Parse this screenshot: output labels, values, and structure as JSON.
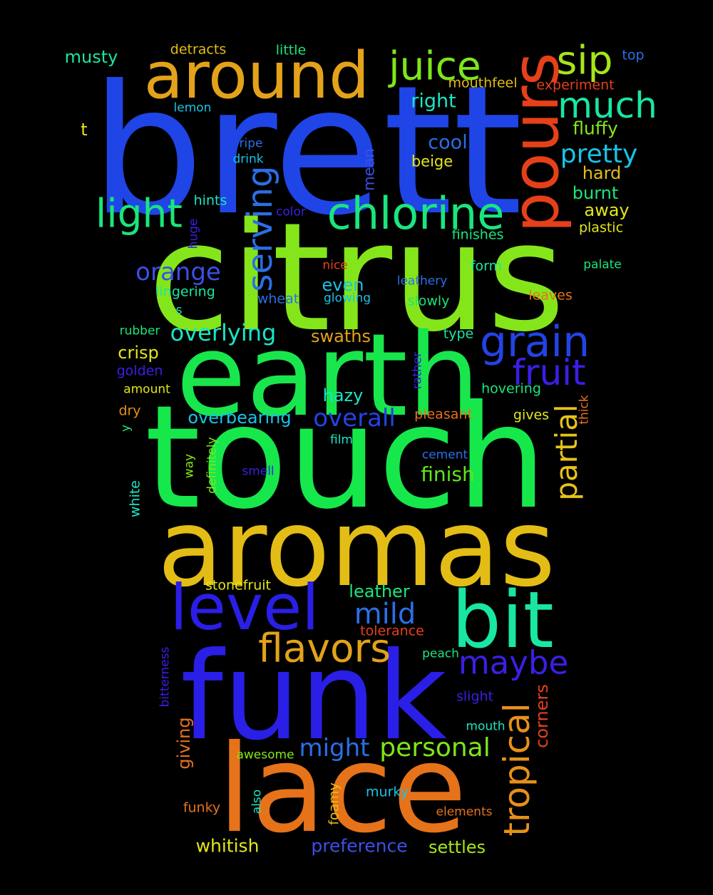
{
  "words": [
    {
      "text": "brett",
      "color": "#1f45e6"
    },
    {
      "text": "citrus",
      "color": "#84e61a"
    },
    {
      "text": "touch",
      "color": "#16e84c"
    },
    {
      "text": "earth",
      "color": "#19e64c"
    },
    {
      "text": "aromas",
      "color": "#e3bd16"
    },
    {
      "text": "funk",
      "color": "#2a1fe6"
    },
    {
      "text": "lace",
      "color": "#e6721a"
    },
    {
      "text": "around",
      "color": "#e3a21a"
    },
    {
      "text": "pours",
      "color": "#e6401a"
    },
    {
      "text": "juice",
      "color": "#7ee61a"
    },
    {
      "text": "sip",
      "color": "#a6e61a"
    },
    {
      "text": "much",
      "color": "#19e6a3"
    },
    {
      "text": "chlorine",
      "color": "#19e67d"
    },
    {
      "text": "light",
      "color": "#19e67a"
    },
    {
      "text": "serving",
      "color": "#2b6fe6"
    },
    {
      "text": "grain",
      "color": "#2343e6"
    },
    {
      "text": "fruit",
      "color": "#3a1fe6"
    },
    {
      "text": "level",
      "color": "#2a1fe6"
    },
    {
      "text": "bit",
      "color": "#19e6a3"
    },
    {
      "text": "flavors",
      "color": "#e3a21a"
    },
    {
      "text": "maybe",
      "color": "#3a1fe6"
    },
    {
      "text": "tropical",
      "color": "#e6901a"
    },
    {
      "text": "partial",
      "color": "#e6c21a"
    },
    {
      "text": "personal",
      "color": "#7ee61a"
    },
    {
      "text": "might",
      "color": "#2b6fe6"
    },
    {
      "text": "mild",
      "color": "#2b6fe6"
    },
    {
      "text": "orange",
      "color": "#3a50e6"
    },
    {
      "text": "overlying",
      "color": "#19e6c6"
    },
    {
      "text": "overall",
      "color": "#2343e6"
    },
    {
      "text": "pretty",
      "color": "#19c3e6"
    },
    {
      "text": "finish",
      "color": "#60e61a"
    },
    {
      "text": "musty",
      "color": "#19e6a3"
    },
    {
      "text": "detracts",
      "color": "#e3bd16"
    },
    {
      "text": "little",
      "color": "#19e67d"
    },
    {
      "text": "top",
      "color": "#2b6fe6"
    },
    {
      "text": "mouthfeel",
      "color": "#e3bd16"
    },
    {
      "text": "experiment",
      "color": "#e6401a"
    },
    {
      "text": "lemon",
      "color": "#19c3e6"
    },
    {
      "text": "right",
      "color": "#19e6c6"
    },
    {
      "text": "fluffy",
      "color": "#84e61a"
    },
    {
      "text": "t",
      "color": "#e3e61a"
    },
    {
      "text": "cool",
      "color": "#2b6fe6"
    },
    {
      "text": "ripe",
      "color": "#2b6fe6"
    },
    {
      "text": "drink",
      "color": "#19c3e6"
    },
    {
      "text": "beige",
      "color": "#e3e61a"
    },
    {
      "text": "mean",
      "color": "#3a50e6"
    },
    {
      "text": "hard",
      "color": "#e3bd16"
    },
    {
      "text": "burnt",
      "color": "#19e67d"
    },
    {
      "text": "hints",
      "color": "#19e6c6"
    },
    {
      "text": "color",
      "color": "#3a1fe6"
    },
    {
      "text": "away",
      "color": "#e3e61a"
    },
    {
      "text": "plastic",
      "color": "#e3e61a"
    },
    {
      "text": "finishes",
      "color": "#19e67d"
    },
    {
      "text": "huge",
      "color": "#3a1fe6"
    },
    {
      "text": "nice",
      "color": "#e6401a"
    },
    {
      "text": "form",
      "color": "#19e6a3"
    },
    {
      "text": "palate",
      "color": "#19e67d"
    },
    {
      "text": "leathery",
      "color": "#2b6fe6"
    },
    {
      "text": "lingering",
      "color": "#19e6a3"
    },
    {
      "text": "even",
      "color": "#19c3e6"
    },
    {
      "text": "wheat",
      "color": "#2b6fe6"
    },
    {
      "text": "glowing",
      "color": "#19c3e6"
    },
    {
      "text": "leaves",
      "color": "#e6721a"
    },
    {
      "text": "slowly",
      "color": "#19e67d"
    },
    {
      "text": "s",
      "color": "#19e6c6"
    },
    {
      "text": "rubber",
      "color": "#19e67d"
    },
    {
      "text": "swaths",
      "color": "#e3a21a"
    },
    {
      "text": "type",
      "color": "#19e6a3"
    },
    {
      "text": "crisp",
      "color": "#e3e61a"
    },
    {
      "text": "golden",
      "color": "#3a1fe6"
    },
    {
      "text": "rather",
      "color": "#3a1fe6"
    },
    {
      "text": "amount",
      "color": "#e3e61a"
    },
    {
      "text": "hazy",
      "color": "#19e6c6"
    },
    {
      "text": "hovering",
      "color": "#19e67d"
    },
    {
      "text": "thick",
      "color": "#e6721a"
    },
    {
      "text": "dry",
      "color": "#e6901a"
    },
    {
      "text": "overbearing",
      "color": "#19c3e6"
    },
    {
      "text": "pleasant",
      "color": "#e6721a"
    },
    {
      "text": "gives",
      "color": "#e3e61a"
    },
    {
      "text": "y",
      "color": "#19e67d"
    },
    {
      "text": "film",
      "color": "#19e6c6"
    },
    {
      "text": "definitely",
      "color": "#84e61a"
    },
    {
      "text": "way",
      "color": "#84e61a"
    },
    {
      "text": "cement",
      "color": "#2b6fe6"
    },
    {
      "text": "smell",
      "color": "#3a1fe6"
    },
    {
      "text": "white",
      "color": "#19e6c6"
    },
    {
      "text": "stonefruit",
      "color": "#e3e61a"
    },
    {
      "text": "leather",
      "color": "#19e67d"
    },
    {
      "text": "tolerance",
      "color": "#e6401a"
    },
    {
      "text": "peach",
      "color": "#19e67d"
    },
    {
      "text": "bitterness",
      "color": "#3a1fe6"
    },
    {
      "text": "corners",
      "color": "#e6401a"
    },
    {
      "text": "slight",
      "color": "#3a1fe6"
    },
    {
      "text": "giving",
      "color": "#e6721a"
    },
    {
      "text": "mouth",
      "color": "#19e6c6"
    },
    {
      "text": "awesome",
      "color": "#84e61a"
    },
    {
      "text": "murky",
      "color": "#19c3e6"
    },
    {
      "text": "also",
      "color": "#19e6c6"
    },
    {
      "text": "foamy",
      "color": "#e3bd16"
    },
    {
      "text": "funky",
      "color": "#e6721a"
    },
    {
      "text": "elements",
      "color": "#e6721a"
    },
    {
      "text": "whitish",
      "color": "#e3e61a"
    },
    {
      "text": "preference",
      "color": "#3a50e6"
    },
    {
      "text": "settles",
      "color": "#a6e61a"
    }
  ]
}
